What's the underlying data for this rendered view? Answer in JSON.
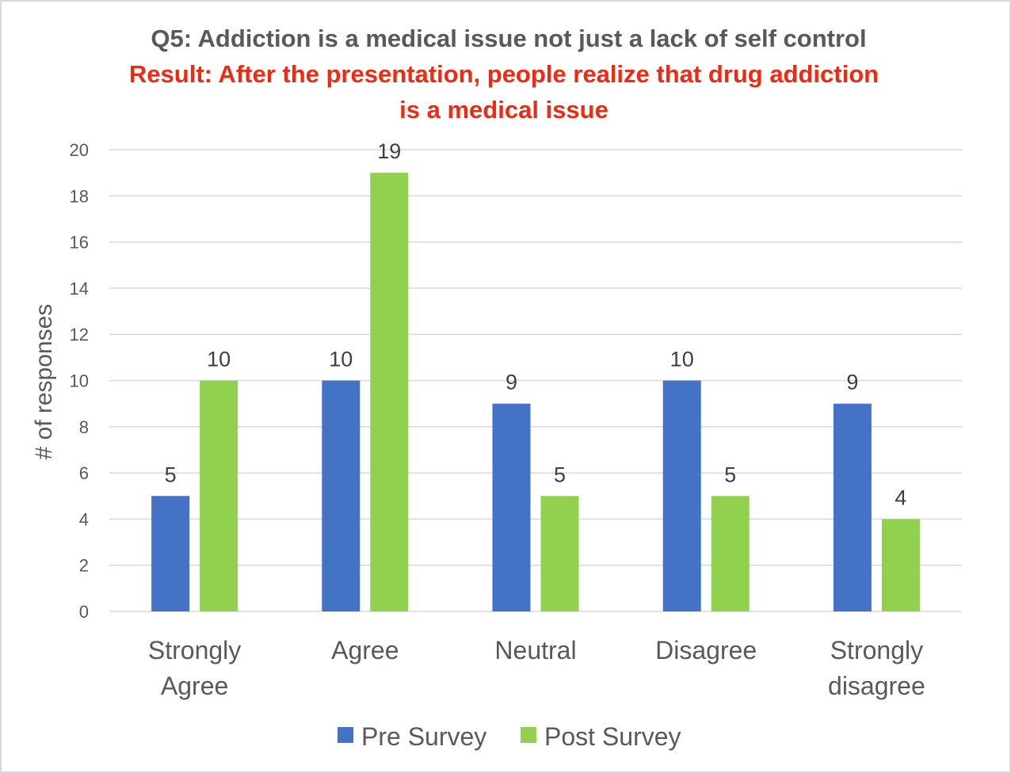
{
  "chart_data": {
    "type": "bar",
    "title": "Q5: Addiction is a medical issue not just a lack of self control",
    "subtitle_lines": [
      "Result: After the presentation, people realize that drug addiction",
      "is a medical issue"
    ],
    "ylabel": "# of responses",
    "xlabel": "",
    "ylim": [
      0,
      20
    ],
    "yticks": [
      0,
      2,
      4,
      6,
      8,
      10,
      12,
      14,
      16,
      18,
      20
    ],
    "categories": [
      [
        "Strongly",
        "Agree"
      ],
      [
        "Agree"
      ],
      [
        "Neutral"
      ],
      [
        "Disagree"
      ],
      [
        "Strongly",
        "disagree"
      ]
    ],
    "series": [
      {
        "name": "Pre Survey",
        "color": "#4472c4",
        "values": [
          5,
          10,
          9,
          10,
          9
        ]
      },
      {
        "name": "Post Survey",
        "color": "#92d050",
        "values": [
          10,
          19,
          5,
          5,
          4
        ]
      }
    ],
    "grid": true,
    "legend_position": "bottom",
    "subtitle_color": "#ee2b12"
  }
}
